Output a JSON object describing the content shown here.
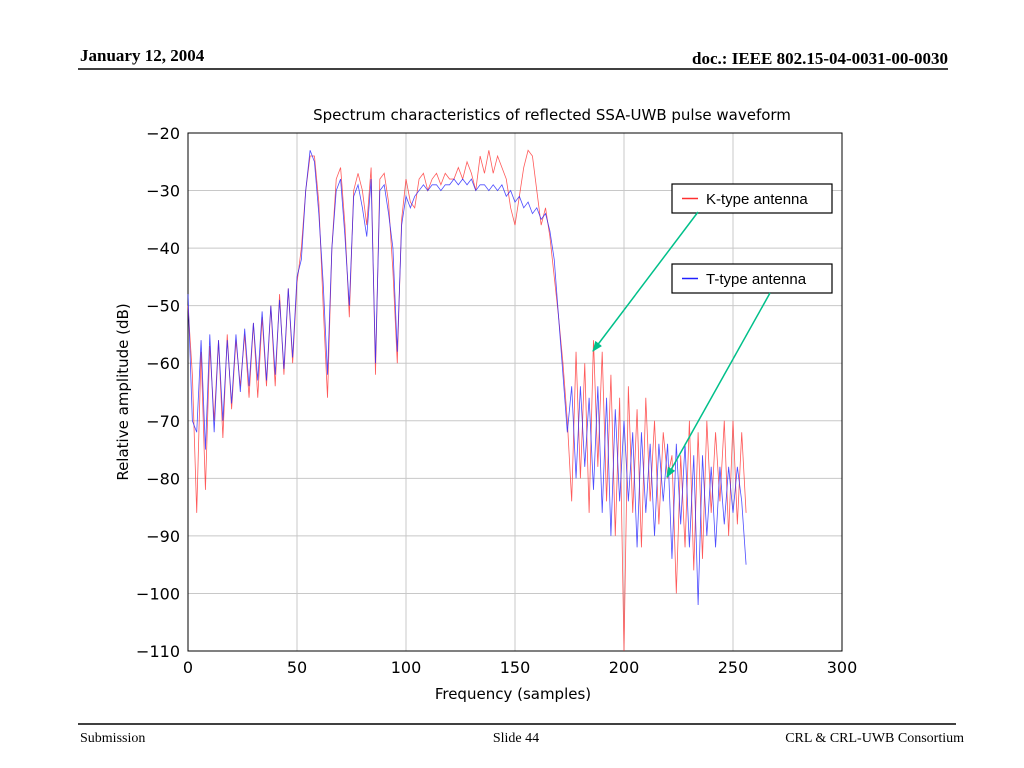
{
  "header": {
    "date": "January 12, 2004",
    "doc": "doc.: IEEE 802.15-04-0031-00-0030"
  },
  "footer": {
    "left": "Submission",
    "center": "Slide 44",
    "right": "CRL & CRL-UWB Consortium"
  },
  "chart_data": {
    "type": "line",
    "title": "Spectrum characteristics of reflected SSA-UWB pulse waveform",
    "x_label": "Frequency (samples)",
    "y_label": "Relative amplitude (dB)",
    "x": [
      0,
      2,
      4,
      6,
      8,
      10,
      12,
      14,
      16,
      18,
      20,
      22,
      24,
      26,
      28,
      30,
      32,
      34,
      36,
      38,
      40,
      42,
      44,
      46,
      48,
      50,
      52,
      54,
      56,
      58,
      60,
      62,
      64,
      66,
      68,
      70,
      72,
      74,
      76,
      78,
      80,
      82,
      84,
      86,
      88,
      90,
      92,
      94,
      96,
      98,
      100,
      102,
      104,
      106,
      108,
      110,
      112,
      114,
      116,
      118,
      120,
      122,
      124,
      126,
      128,
      130,
      132,
      134,
      136,
      138,
      140,
      142,
      144,
      146,
      148,
      150,
      152,
      154,
      156,
      158,
      160,
      162,
      164,
      166,
      168,
      170,
      172,
      174,
      176,
      178,
      180,
      182,
      184,
      186,
      188,
      190,
      192,
      194,
      196,
      198,
      200,
      202,
      204,
      206,
      208,
      210,
      212,
      214,
      216,
      218,
      220,
      222,
      224,
      226,
      228,
      230,
      232,
      234,
      236,
      238,
      240,
      242,
      244,
      246,
      248,
      250,
      252,
      254,
      256
    ],
    "series": [
      {
        "name": "K-type antenna",
        "color": "#ff3030",
        "values": [
          -50,
          -62,
          -86,
          -58,
          -82,
          -57,
          -70,
          -56,
          -73,
          -55,
          -68,
          -56,
          -64,
          -55,
          -66,
          -53,
          -66,
          -52,
          -64,
          -50,
          -64,
          -48,
          -62,
          -47,
          -60,
          -46,
          -40,
          -30,
          -24,
          -24,
          -32,
          -50,
          -66,
          -40,
          -28,
          -26,
          -36,
          -52,
          -30,
          -27,
          -30,
          -36,
          -26,
          -62,
          -28,
          -27,
          -32,
          -44,
          -60,
          -35,
          -28,
          -32,
          -33,
          -28,
          -27,
          -30,
          -28,
          -27,
          -29,
          -27,
          -28,
          -28,
          -26,
          -28,
          -25,
          -27,
          -30,
          -24,
          -27,
          -23,
          -27,
          -24,
          -26,
          -28,
          -33,
          -36,
          -31,
          -26,
          -23,
          -24,
          -30,
          -36,
          -33,
          -38,
          -45,
          -52,
          -60,
          -70,
          -84,
          -58,
          -80,
          -60,
          -86,
          -56,
          -78,
          -58,
          -84,
          -62,
          -90,
          -66,
          -110,
          -64,
          -86,
          -68,
          -92,
          -66,
          -84,
          -70,
          -88,
          -72,
          -80,
          -76,
          -100,
          -76,
          -92,
          -70,
          -96,
          -72,
          -94,
          -70,
          -86,
          -72,
          -84,
          -70,
          -90,
          -70,
          -88,
          -72,
          -86
        ]
      },
      {
        "name": "T-type antenna",
        "color": "#2020ff",
        "values": [
          -48,
          -70,
          -72,
          -56,
          -75,
          -55,
          -72,
          -56,
          -70,
          -56,
          -67,
          -55,
          -65,
          -54,
          -64,
          -53,
          -63,
          -51,
          -63,
          -50,
          -62,
          -49,
          -61,
          -47,
          -59,
          -45,
          -42,
          -30,
          -23,
          -25,
          -34,
          -46,
          -62,
          -40,
          -30,
          -28,
          -38,
          -50,
          -31,
          -29,
          -33,
          -38,
          -28,
          -60,
          -30,
          -29,
          -34,
          -40,
          -58,
          -36,
          -31,
          -33,
          -31,
          -30,
          -29,
          -30,
          -29,
          -29,
          -30,
          -29,
          -29,
          -28,
          -29,
          -28,
          -29,
          -28,
          -30,
          -29,
          -29,
          -30,
          -29,
          -30,
          -29,
          -31,
          -30,
          -32,
          -31,
          -33,
          -32,
          -34,
          -33,
          -35,
          -34,
          -37,
          -42,
          -52,
          -62,
          -72,
          -64,
          -80,
          -64,
          -78,
          -66,
          -82,
          -64,
          -86,
          -66,
          -90,
          -68,
          -84,
          -70,
          -84,
          -72,
          -92,
          -72,
          -86,
          -74,
          -90,
          -74,
          -84,
          -74,
          -94,
          -74,
          -88,
          -74,
          -92,
          -76,
          -102,
          -76,
          -90,
          -78,
          -92,
          -78,
          -88,
          -78,
          -86,
          -78,
          -84,
          -95
        ]
      }
    ],
    "xlim": [
      0,
      300
    ],
    "ylim": [
      -110,
      -20
    ],
    "xticks": [
      0,
      50,
      100,
      150,
      200,
      250,
      300
    ],
    "yticks": [
      {
        "value": -20,
        "label": "−20"
      },
      {
        "value": -30,
        "label": "−30"
      },
      {
        "value": -40,
        "label": "−40"
      },
      {
        "value": -50,
        "label": "−50"
      },
      {
        "value": -60,
        "label": "−60"
      },
      {
        "value": -70,
        "label": "−70"
      },
      {
        "value": -80,
        "label": "−80"
      },
      {
        "value": -90,
        "label": "−90"
      },
      {
        "value": -100,
        "label": "−100"
      },
      {
        "value": -110,
        "label": "−110"
      }
    ],
    "grid": true
  }
}
